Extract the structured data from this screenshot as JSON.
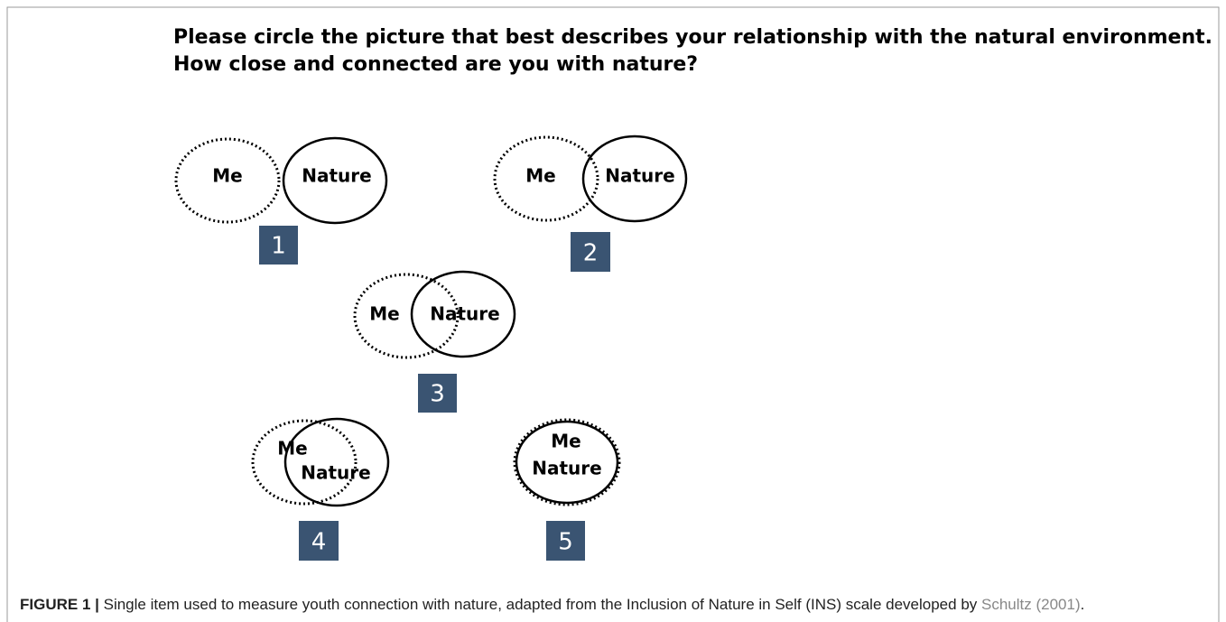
{
  "figure": {
    "prompt": [
      "Please circle the picture that best describes your relationship with the natural environment.",
      "How close and connected are you with nature?"
    ],
    "options": [
      {
        "me": "Me",
        "nature": "Nature",
        "number": "1"
      },
      {
        "me": "Me",
        "nature": "Nature",
        "number": "2"
      },
      {
        "me": "Me",
        "nature": "Nature",
        "number": "3"
      },
      {
        "me": "Me",
        "nature": "Nature",
        "number": "4"
      },
      {
        "me": "Me",
        "nature": "Nature",
        "number": "5"
      }
    ]
  },
  "caption": {
    "label": "FIGURE 1 |",
    "text": " Single item used to measure youth connection with nature, adapted from the Inclusion of Nature in Self (INS) scale developed by ",
    "citation": "Schultz (2001)",
    "end": "."
  }
}
